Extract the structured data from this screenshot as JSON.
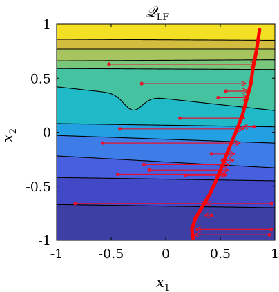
{
  "chart_data": {
    "type": "contour",
    "title": "𝒬",
    "title_subscript": "LF",
    "xlabel": "x",
    "xlabel_subscript": "1",
    "ylabel": "x",
    "ylabel_subscript": "2",
    "xlim": [
      -1,
      1
    ],
    "ylim": [
      -1,
      1
    ],
    "xticks": [
      -1,
      -0.5,
      0,
      0.5,
      1
    ],
    "xtick_labels": [
      "-1",
      "-0.5",
      "0",
      "0.5",
      "1"
    ],
    "yticks": [
      -1,
      -0.5,
      0,
      0.5,
      1
    ],
    "ytick_labels": [
      "-1",
      "-0.5",
      "0",
      "0.5",
      "1"
    ],
    "contour_levels_y_at_left": [
      -0.67,
      -0.42,
      -0.22,
      -0.03,
      0.08,
      0.42,
      0.59,
      0.66,
      0.77,
      0.86
    ],
    "contour_levels_y_at_right": [
      -0.7,
      -0.45,
      -0.33,
      -0.1,
      0.05,
      0.2,
      0.58,
      0.67,
      0.77,
      0.85
    ],
    "band_colors": [
      "#3e3fa4",
      "#4149c6",
      "#4660e0",
      "#3e7de8",
      "#23a0e1",
      "#1fb9c8",
      "#45c3a0",
      "#78c77c",
      "#a6c55e",
      "#d3bd3e",
      "#f3e025"
    ],
    "curve": {
      "color": "#ff0000",
      "x": [
        0.25,
        0.24,
        0.27,
        0.33,
        0.4,
        0.46,
        0.51,
        0.56,
        0.6,
        0.65,
        0.7,
        0.74,
        0.78,
        0.8,
        0.83,
        0.85,
        0.86
      ],
      "y": [
        -0.98,
        -0.9,
        -0.8,
        -0.7,
        -0.58,
        -0.45,
        -0.33,
        -0.2,
        -0.1,
        0.02,
        0.15,
        0.3,
        0.45,
        0.6,
        0.75,
        0.88,
        0.95
      ]
    },
    "arrows": [
      {
        "x0": -0.52,
        "y0": 0.63,
        "x1": 0.82,
        "y1": 0.63
      },
      {
        "x0": -0.22,
        "y0": 0.45,
        "x1": 0.73,
        "y1": 0.45
      },
      {
        "x0": 0.55,
        "y0": 0.38,
        "x1": 0.75,
        "y1": 0.38
      },
      {
        "x0": 0.48,
        "y0": 0.32,
        "x1": 0.75,
        "y1": 0.32
      },
      {
        "x0": 0.13,
        "y0": 0.13,
        "x1": 0.72,
        "y1": 0.13
      },
      {
        "x0": 0.81,
        "y0": 0.05,
        "x1": 0.71,
        "y1": 0.05
      },
      {
        "x0": -0.42,
        "y0": 0.03,
        "x1": 0.71,
        "y1": 0.03
      },
      {
        "x0": -0.58,
        "y0": -0.1,
        "x1": 0.68,
        "y1": -0.1
      },
      {
        "x0": 0.42,
        "y0": -0.2,
        "x1": 0.63,
        "y1": -0.2
      },
      {
        "x0": 0.52,
        "y0": -0.26,
        "x1": 0.62,
        "y1": -0.26
      },
      {
        "x0": -0.2,
        "y0": -0.3,
        "x1": 0.58,
        "y1": -0.3
      },
      {
        "x0": -0.15,
        "y0": -0.35,
        "x1": 0.57,
        "y1": -0.35
      },
      {
        "x0": -0.44,
        "y0": -0.39,
        "x1": 0.55,
        "y1": -0.39
      },
      {
        "x0": 0.18,
        "y0": -0.4,
        "x1": 0.55,
        "y1": -0.4
      },
      {
        "x0": -0.83,
        "y0": -0.66,
        "x1": 0.37,
        "y1": -0.66
      },
      {
        "x0": 0.97,
        "y0": -0.66,
        "x1": 0.37,
        "y1": -0.66
      },
      {
        "x0": 0.42,
        "y0": -0.77,
        "x1": 0.36,
        "y1": -0.77
      },
      {
        "x0": 0.97,
        "y0": -0.9,
        "x1": 0.28,
        "y1": -0.9
      },
      {
        "x0": 0.95,
        "y0": -0.95,
        "x1": 0.27,
        "y1": -0.95
      }
    ],
    "arrow_color": "#e8112d",
    "grid": false,
    "legend": "none"
  }
}
